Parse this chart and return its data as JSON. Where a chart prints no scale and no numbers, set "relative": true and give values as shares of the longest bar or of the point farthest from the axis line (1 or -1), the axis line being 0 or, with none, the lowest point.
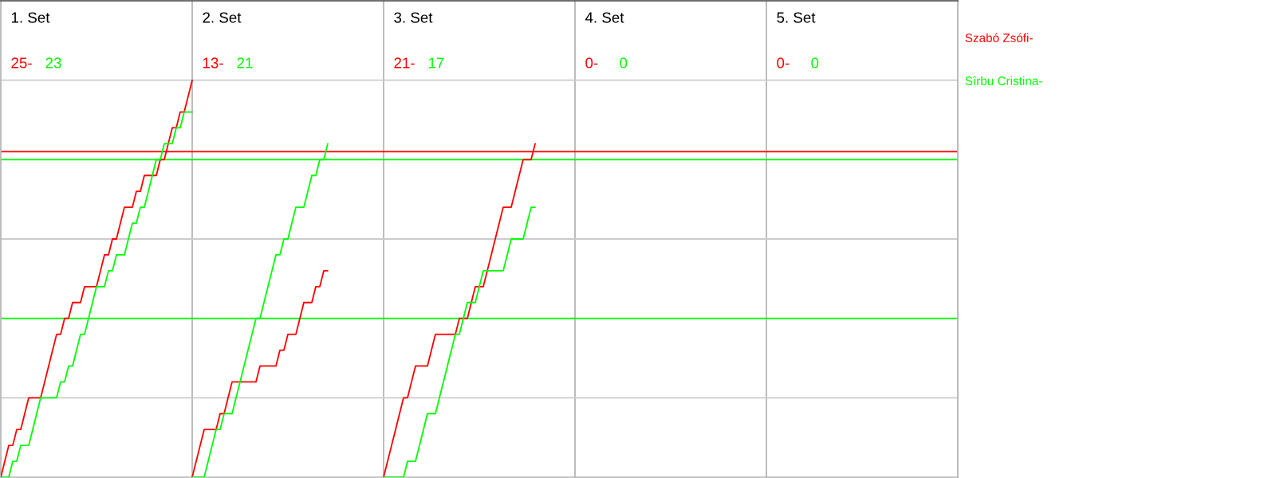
{
  "chart_data": {
    "type": "line",
    "relative": true,
    "legend": "right",
    "annotations": [
      "1. Set",
      "25-",
      "23",
      "2. Set",
      "13-",
      "21",
      "3. Set",
      "21-",
      "17",
      "4. Set",
      "0-",
      "0",
      "5. Set",
      "0-",
      "0"
    ],
    "categories": [
      null,
      null,
      null,
      null,
      null,
      null,
      null,
      null,
      null,
      null,
      null,
      null,
      null,
      null,
      null,
      null,
      null,
      null,
      null,
      null,
      null,
      null,
      null,
      null,
      null,
      null,
      null,
      null,
      null,
      null,
      null,
      null,
      null,
      null,
      null,
      null,
      null,
      null,
      null,
      null,
      null,
      null,
      null,
      null,
      null,
      null,
      null,
      null,
      null,
      null,
      null,
      null,
      null,
      null,
      null,
      null,
      null,
      null,
      null,
      null,
      null,
      null,
      null,
      null,
      null,
      null,
      null,
      null,
      null,
      null,
      null,
      null,
      null,
      null,
      null,
      null,
      null,
      null,
      null,
      null,
      null,
      null,
      null,
      null,
      null,
      null,
      null,
      null,
      null,
      null,
      null,
      null,
      null,
      null,
      null,
      null,
      null,
      null,
      null,
      null,
      null,
      null,
      null,
      null,
      null,
      null,
      null,
      null,
      null,
      null,
      null,
      null,
      null,
      null,
      null,
      null,
      null,
      null,
      null,
      null,
      null,
      null,
      null,
      null,
      null,
      null,
      null,
      null,
      null,
      null,
      null,
      null,
      null,
      null,
      null,
      null,
      null,
      null,
      null,
      null,
      null,
      null,
      null,
      null,
      null,
      null,
      null,
      null,
      null,
      null,
      null,
      null,
      null,
      null,
      null,
      null,
      null,
      null,
      null,
      null,
      null,
      null,
      null,
      null,
      null,
      null,
      null,
      null,
      null,
      null,
      null,
      null,
      null,
      null,
      null,
      null,
      null,
      null,
      null,
      null,
      null,
      null,
      null,
      null,
      null,
      null,
      null,
      null,
      null,
      null,
      null,
      null,
      null,
      null,
      null,
      null,
      null,
      null,
      null,
      null,
      null,
      null,
      null,
      null,
      null,
      null,
      null,
      null,
      null,
      null,
      null,
      null,
      null,
      null,
      null,
      null,
      null,
      null,
      null,
      null,
      null,
      null,
      null,
      null,
      null,
      null,
      null,
      null,
      null,
      null,
      null,
      null,
      null,
      null,
      null,
      null,
      null,
      null,
      null,
      null,
      null
    ],
    "ref_lines": [
      {
        "axis": "y",
        "value": 0.2,
        "color": "#cccccc"
      },
      {
        "axis": "y",
        "value": 0.6,
        "color": "#cccccc"
      },
      {
        "axis": "y",
        "value": 1,
        "color": "#cccccc"
      },
      {
        "axis": "y",
        "value": 0.82,
        "color": "#ff0000"
      },
      {
        "axis": "y",
        "value": 0.8,
        "color": "#00ff00"
      },
      {
        "axis": "y",
        "value": 0.4,
        "color": "#00ff00"
      }
    ],
    "series": [
      {
        "name": "Szabó Zsófi-",
        "color": "#ff0000",
        "values": [
          0,
          0.04,
          0.08,
          0.08,
          0.12,
          0.12,
          0.16,
          0.2,
          0.2,
          0.2,
          0.2,
          0.24,
          0.28,
          0.32,
          0.36,
          0.36,
          0.4,
          0.4,
          0.44,
          0.44,
          0.44,
          0.48,
          0.48,
          0.48,
          0.48,
          0.52,
          0.56,
          0.56,
          0.6,
          0.6,
          0.64,
          0.68,
          0.68,
          0.68,
          0.72,
          0.72,
          0.76,
          0.76,
          0.76,
          0.76,
          0.8,
          0.8,
          0.84,
          0.88,
          0.88,
          0.92,
          0.92,
          0.96,
          1,
          null,
          null,
          null,
          null,
          null,
          null,
          null,
          null,
          null,
          null,
          null,
          null,
          null,
          null,
          null,
          null,
          null,
          null,
          null,
          null,
          null,
          null,
          null,
          null,
          null,
          null,
          null,
          null,
          null,
          null,
          null,
          null,
          null,
          null,
          null,
          null,
          null,
          null,
          null,
          null,
          null,
          null,
          null,
          null,
          null,
          null,
          null,
          null,
          null,
          null,
          null,
          null,
          null,
          null,
          null,
          null,
          null,
          null,
          null,
          null,
          null,
          null,
          null,
          null,
          null,
          null,
          null,
          null,
          null,
          null,
          null,
          null,
          null,
          null,
          null,
          null,
          null,
          null,
          null,
          null,
          null,
          null,
          null,
          null,
          null,
          null,
          null,
          null,
          null,
          null,
          null,
          null,
          null,
          null,
          null,
          null,
          null,
          null,
          null,
          null,
          null,
          null,
          null,
          null,
          null,
          null,
          null,
          null,
          null,
          null,
          null,
          null,
          null,
          null,
          null,
          null,
          null,
          null,
          null,
          null,
          null,
          null,
          null,
          null,
          null,
          null,
          null,
          null,
          null,
          null,
          null,
          null,
          null,
          null,
          null,
          null,
          null,
          null,
          null,
          null,
          null,
          null,
          null,
          null,
          null,
          null,
          null,
          null,
          null,
          null,
          null,
          null,
          null,
          null,
          null,
          null,
          null,
          null,
          null,
          null,
          null,
          null,
          null,
          null,
          null,
          null,
          null,
          null,
          null,
          null,
          null,
          null,
          null,
          null,
          null,
          null,
          null,
          null,
          null,
          null,
          null,
          null,
          null,
          null,
          null,
          null,
          null,
          null,
          null,
          null,
          null,
          null
        ]
      },
      {
        "name": "Sîrbu Cristina-",
        "color": "#00ff00",
        "values": [
          0,
          0,
          0,
          0.04,
          0.04,
          0.08,
          0.08,
          0.08,
          0.12,
          0.16,
          0.2,
          0.2,
          0.2,
          0.2,
          0.2,
          0.24,
          0.24,
          0.28,
          0.28,
          0.32,
          0.36,
          0.36,
          0.4,
          0.44,
          0.48,
          0.48,
          0.48,
          0.52,
          0.52,
          0.56,
          0.56,
          0.56,
          0.6,
          0.64,
          0.64,
          0.68,
          0.68,
          0.72,
          0.76,
          0.8,
          0.8,
          0.84,
          0.84,
          0.84,
          0.88,
          0.88,
          0.92,
          0.92,
          0.92,
          null,
          null,
          null,
          null,
          null,
          null,
          null,
          null,
          null,
          null,
          null,
          null,
          null,
          null,
          null,
          null,
          null,
          null,
          null,
          null,
          null,
          null,
          null,
          null,
          null,
          null,
          null,
          null,
          null,
          null,
          null,
          null,
          null,
          null,
          null,
          null,
          null,
          null,
          null,
          null,
          null,
          null,
          null,
          null,
          null,
          null,
          null,
          null,
          null,
          null,
          null,
          null,
          null,
          null,
          null,
          null,
          null,
          null,
          null,
          null,
          null,
          null,
          null,
          null,
          null,
          null,
          null,
          null,
          null,
          null,
          null,
          null,
          null,
          null,
          null,
          null,
          null,
          null,
          null,
          null,
          null,
          null,
          null,
          null,
          null,
          null,
          null,
          null,
          null,
          null,
          null,
          null,
          null,
          null,
          null,
          null,
          null,
          null,
          null,
          null,
          null,
          null,
          null,
          null,
          null,
          null,
          null,
          null,
          null,
          null,
          null,
          null,
          null,
          null,
          null,
          null,
          null,
          null,
          null,
          null,
          null,
          null,
          null,
          null,
          null,
          null,
          null,
          null,
          null,
          null,
          null,
          null,
          null,
          null,
          null,
          null,
          null,
          null,
          null,
          null,
          null,
          null,
          null,
          null,
          null,
          null,
          null,
          null,
          null,
          null,
          null,
          null,
          null,
          null,
          null,
          null,
          null,
          null,
          null,
          null,
          null,
          null,
          null,
          null,
          null,
          null,
          null,
          null,
          null,
          null,
          null,
          null,
          null,
          null,
          null,
          null,
          null,
          null,
          null,
          null,
          null,
          null,
          null,
          null,
          null,
          null,
          null,
          null,
          null,
          null,
          null,
          null
        ]
      },
      {
        "color": "#ff0000",
        "values": [
          null,
          null,
          null,
          null,
          null,
          null,
          null,
          null,
          null,
          null,
          null,
          null,
          null,
          null,
          null,
          null,
          null,
          null,
          null,
          null,
          null,
          null,
          null,
          null,
          null,
          null,
          null,
          null,
          null,
          null,
          null,
          null,
          null,
          null,
          null,
          null,
          null,
          null,
          null,
          null,
          null,
          null,
          null,
          null,
          null,
          null,
          null,
          null,
          0,
          0.04,
          0.08,
          0.12,
          0.12,
          0.12,
          0.12,
          0.16,
          0.16,
          0.2,
          0.24,
          0.24,
          0.24,
          0.24,
          0.24,
          0.24,
          0.24,
          0.28,
          0.28,
          0.28,
          0.28,
          0.28,
          0.32,
          0.32,
          0.36,
          0.36,
          0.36,
          0.4,
          0.44,
          0.44,
          0.44,
          0.48,
          0.48,
          0.52,
          0.52,
          null,
          null,
          null,
          null,
          null,
          null,
          null,
          null,
          null,
          null,
          null,
          null,
          null,
          null,
          null,
          null,
          null,
          null,
          null,
          null,
          null,
          null,
          null,
          null,
          null,
          null,
          null,
          null,
          null,
          null,
          null,
          null,
          null,
          null,
          null,
          null,
          null,
          null,
          null,
          null,
          null,
          null,
          null,
          null,
          null,
          null,
          null,
          null,
          null,
          null,
          null,
          null,
          null,
          null,
          null,
          null,
          null,
          null,
          null,
          null,
          null,
          null,
          null,
          null,
          null,
          null,
          null,
          null,
          null,
          null,
          null,
          null,
          null,
          null,
          null,
          null,
          null,
          null,
          null,
          null,
          null,
          null,
          null,
          null,
          null,
          null,
          null,
          null,
          null,
          null,
          null,
          null,
          null,
          null,
          null,
          null,
          null,
          null,
          null,
          null,
          null,
          null,
          null,
          null,
          null,
          null,
          null,
          null,
          null,
          null,
          null,
          null,
          null,
          null,
          null,
          null,
          null,
          null,
          null,
          null,
          null,
          null,
          null,
          null,
          null,
          null,
          null,
          null,
          null,
          null,
          null,
          null,
          null,
          null,
          null,
          null,
          null,
          null,
          null,
          null,
          null,
          null,
          null,
          null,
          null,
          null,
          null,
          null,
          null,
          null,
          null,
          null,
          null,
          null,
          null,
          null,
          null,
          null
        ]
      },
      {
        "color": "#00ff00",
        "values": [
          null,
          null,
          null,
          null,
          null,
          null,
          null,
          null,
          null,
          null,
          null,
          null,
          null,
          null,
          null,
          null,
          null,
          null,
          null,
          null,
          null,
          null,
          null,
          null,
          null,
          null,
          null,
          null,
          null,
          null,
          null,
          null,
          null,
          null,
          null,
          null,
          null,
          null,
          null,
          null,
          null,
          null,
          null,
          null,
          null,
          null,
          null,
          null,
          0,
          0,
          0,
          0,
          0.04,
          0.08,
          0.12,
          0.12,
          0.16,
          0.16,
          0.16,
          0.2,
          0.24,
          0.28,
          0.32,
          0.36,
          0.4,
          0.4,
          0.44,
          0.48,
          0.52,
          0.56,
          0.56,
          0.6,
          0.6,
          0.64,
          0.68,
          0.68,
          0.68,
          0.72,
          0.76,
          0.76,
          0.8,
          0.8,
          0.84,
          null,
          null,
          null,
          null,
          null,
          null,
          null,
          null,
          null,
          null,
          null,
          null,
          null,
          null,
          null,
          null,
          null,
          null,
          null,
          null,
          null,
          null,
          null,
          null,
          null,
          null,
          null,
          null,
          null,
          null,
          null,
          null,
          null,
          null,
          null,
          null,
          null,
          null,
          null,
          null,
          null,
          null,
          null,
          null,
          null,
          null,
          null,
          null,
          null,
          null,
          null,
          null,
          null,
          null,
          null,
          null,
          null,
          null,
          null,
          null,
          null,
          null,
          null,
          null,
          null,
          null,
          null,
          null,
          null,
          null,
          null,
          null,
          null,
          null,
          null,
          null,
          null,
          null,
          null,
          null,
          null,
          null,
          null,
          null,
          null,
          null,
          null,
          null,
          null,
          null,
          null,
          null,
          null,
          null,
          null,
          null,
          null,
          null,
          null,
          null,
          null,
          null,
          null,
          null,
          null,
          null,
          null,
          null,
          null,
          null,
          null,
          null,
          null,
          null,
          null,
          null,
          null,
          null,
          null,
          null,
          null,
          null,
          null,
          null,
          null,
          null,
          null,
          null,
          null,
          null,
          null,
          null,
          null,
          null,
          null,
          null,
          null,
          null,
          null,
          null,
          null,
          null,
          null,
          null,
          null,
          null,
          null,
          null,
          null,
          null,
          null,
          null,
          null,
          null,
          null,
          null,
          null,
          null
        ]
      },
      {
        "color": "#ff0000",
        "values": [
          null,
          null,
          null,
          null,
          null,
          null,
          null,
          null,
          null,
          null,
          null,
          null,
          null,
          null,
          null,
          null,
          null,
          null,
          null,
          null,
          null,
          null,
          null,
          null,
          null,
          null,
          null,
          null,
          null,
          null,
          null,
          null,
          null,
          null,
          null,
          null,
          null,
          null,
          null,
          null,
          null,
          null,
          null,
          null,
          null,
          null,
          null,
          null,
          null,
          null,
          null,
          null,
          null,
          null,
          null,
          null,
          null,
          null,
          null,
          null,
          null,
          null,
          null,
          null,
          null,
          null,
          null,
          null,
          null,
          null,
          null,
          null,
          null,
          null,
          null,
          null,
          null,
          null,
          null,
          null,
          null,
          null,
          null,
          null,
          null,
          null,
          null,
          null,
          null,
          null,
          null,
          null,
          null,
          null,
          null,
          null,
          0,
          0.04,
          0.08,
          0.12,
          0.16,
          0.2,
          0.2,
          0.24,
          0.28,
          0.28,
          0.28,
          0.28,
          0.32,
          0.36,
          0.36,
          0.36,
          0.36,
          0.36,
          0.36,
          0.4,
          0.4,
          0.4,
          0.44,
          0.48,
          0.48,
          0.48,
          0.52,
          0.56,
          0.6,
          0.64,
          0.68,
          0.68,
          0.68,
          0.72,
          0.76,
          0.8,
          0.8,
          0.8,
          0.84,
          null,
          null,
          null,
          null,
          null,
          null,
          null,
          null,
          null,
          null,
          null,
          null,
          null,
          null,
          null,
          null,
          null,
          null,
          null,
          null,
          null,
          null,
          null,
          null,
          null,
          null,
          null,
          null,
          null,
          null,
          null,
          null,
          null,
          null,
          null,
          null,
          null,
          null,
          null,
          null,
          null,
          null,
          null,
          null,
          null,
          null,
          null,
          null,
          null,
          null,
          null,
          null,
          null,
          null,
          null,
          null,
          null,
          null,
          null,
          null,
          null,
          null,
          null,
          null,
          null,
          null,
          null,
          null,
          null,
          null,
          null,
          null,
          null,
          null,
          null,
          null,
          null,
          null,
          null,
          null,
          null,
          null,
          null,
          null,
          null,
          null,
          null,
          null,
          null,
          null,
          null,
          null,
          null,
          null,
          null,
          null,
          null,
          null,
          null,
          null,
          null,
          null,
          null,
          null,
          null,
          null
        ]
      },
      {
        "color": "#00ff00",
        "values": [
          null,
          null,
          null,
          null,
          null,
          null,
          null,
          null,
          null,
          null,
          null,
          null,
          null,
          null,
          null,
          null,
          null,
          null,
          null,
          null,
          null,
          null,
          null,
          null,
          null,
          null,
          null,
          null,
          null,
          null,
          null,
          null,
          null,
          null,
          null,
          null,
          null,
          null,
          null,
          null,
          null,
          null,
          null,
          null,
          null,
          null,
          null,
          null,
          null,
          null,
          null,
          null,
          null,
          null,
          null,
          null,
          null,
          null,
          null,
          null,
          null,
          null,
          null,
          null,
          null,
          null,
          null,
          null,
          null,
          null,
          null,
          null,
          null,
          null,
          null,
          null,
          null,
          null,
          null,
          null,
          null,
          null,
          null,
          null,
          null,
          null,
          null,
          null,
          null,
          null,
          null,
          null,
          null,
          null,
          null,
          null,
          0,
          0,
          0,
          0,
          0,
          0,
          0.04,
          0.04,
          0.04,
          0.08,
          0.12,
          0.16,
          0.16,
          0.16,
          0.2,
          0.24,
          0.28,
          0.32,
          0.36,
          0.36,
          0.4,
          0.44,
          0.44,
          0.44,
          0.48,
          0.52,
          0.52,
          0.52,
          0.52,
          0.52,
          0.52,
          0.56,
          0.6,
          0.6,
          0.6,
          0.6,
          0.64,
          0.68,
          0.68,
          null,
          null,
          null,
          null,
          null,
          null,
          null,
          null,
          null,
          null,
          null,
          null,
          null,
          null,
          null,
          null,
          null,
          null,
          null,
          null,
          null,
          null,
          null,
          null,
          null,
          null,
          null,
          null,
          null,
          null,
          null,
          null,
          null,
          null,
          null,
          null,
          null,
          null,
          null,
          null,
          null,
          null,
          null,
          null,
          null,
          null,
          null,
          null,
          null,
          null,
          null,
          null,
          null,
          null,
          null,
          null,
          null,
          null,
          null,
          null,
          null,
          null,
          null,
          null,
          null,
          null,
          null,
          null,
          null,
          null,
          null,
          null,
          null,
          null,
          null,
          null,
          null,
          null,
          null,
          null,
          null,
          null,
          null,
          null,
          null,
          null,
          null,
          null,
          null,
          null,
          null,
          null,
          null,
          null,
          null,
          null,
          null,
          null,
          null,
          null,
          null,
          null,
          null,
          null,
          null,
          null
        ]
      }
    ]
  }
}
